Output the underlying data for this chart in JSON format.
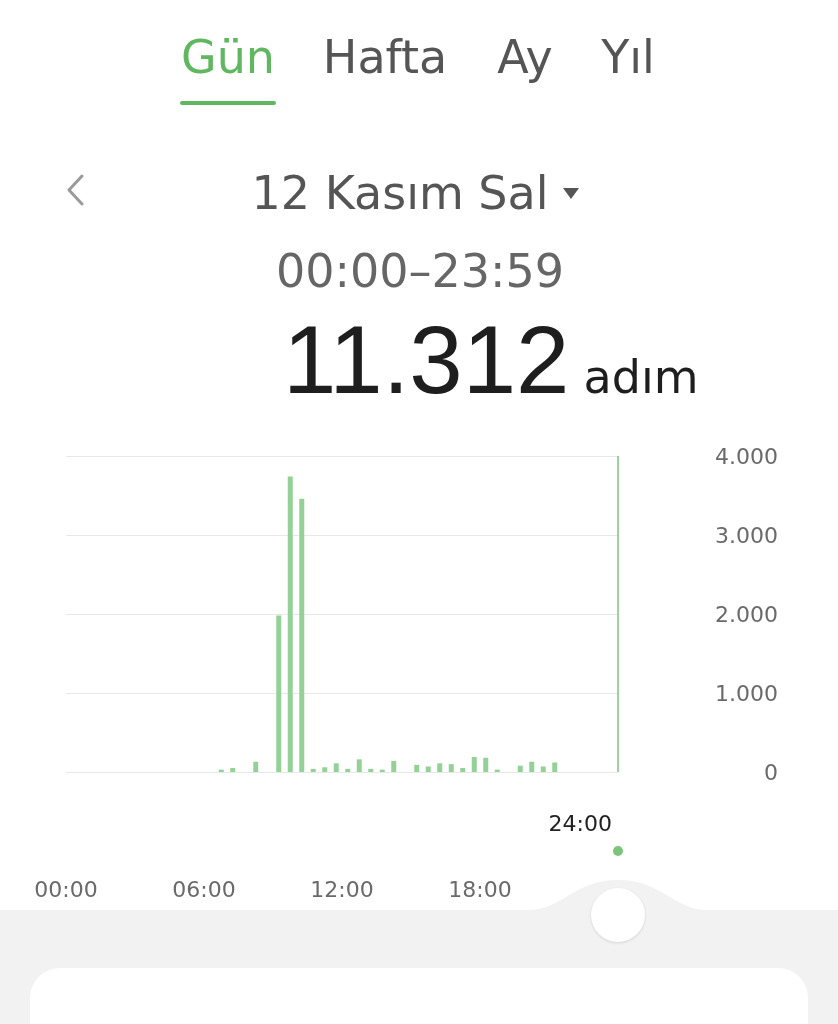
{
  "chart_data": {
    "type": "bar",
    "title": "12 Kasım Sal",
    "subtitle": "00:00–23:59",
    "annotations": [
      "Gün",
      "Hafta",
      "Ay",
      "Yıl",
      "11.312",
      "adım"
    ],
    "x": [
      6.75,
      7.25,
      8.25,
      9.25,
      9.75,
      10.25,
      10.75,
      11.25,
      11.75,
      12.25,
      12.75,
      13.25,
      13.75,
      14.25,
      15.25,
      15.75,
      16.25,
      16.75,
      17.25,
      17.75,
      18.25,
      18.75,
      19.75,
      20.25,
      20.75,
      21.25
    ],
    "values": [
      30,
      50,
      130,
      1980,
      3740,
      3460,
      40,
      60,
      110,
      40,
      160,
      40,
      30,
      140,
      90,
      70,
      110,
      100,
      50,
      190,
      180,
      30,
      80,
      130,
      70,
      120
    ],
    "color": "#94d196",
    "xlim": [
      0,
      24
    ],
    "xticks": [
      {
        "value": 0,
        "label": "00:00"
      },
      {
        "value": 6,
        "label": "06:00"
      },
      {
        "value": 12,
        "label": "12:00"
      },
      {
        "value": 18,
        "label": "18:00"
      }
    ],
    "ylim": [
      0,
      4000
    ],
    "yticks": [
      0,
      {
        "value": 1000,
        "label": "1.000"
      },
      {
        "value": 2000,
        "label": "2.000"
      },
      {
        "value": 3000,
        "label": "3.000"
      },
      {
        "value": 4000,
        "label": "4.000"
      }
    ],
    "grid": "y",
    "ref_lines": [
      {
        "axis": "x",
        "value": 24,
        "label": "24:00",
        "color": "#7cc47c"
      }
    ]
  }
}
